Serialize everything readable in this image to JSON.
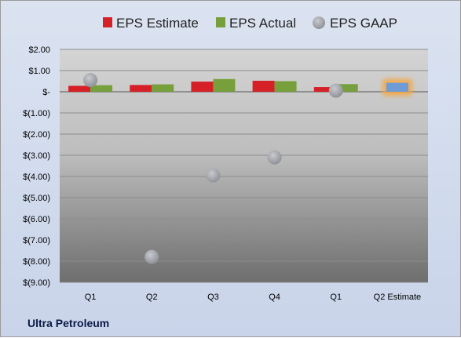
{
  "chart_data": {
    "type": "bar",
    "title": "",
    "xlabel": "",
    "ylabel": "",
    "categories": [
      "Q1",
      "Q2",
      "Q3",
      "Q4",
      "Q1",
      "Q2 Estimate"
    ],
    "ylim": [
      -9,
      2
    ],
    "yticks": [
      2,
      1,
      0,
      -1,
      -2,
      -3,
      -4,
      -5,
      -6,
      -7,
      -8,
      -9
    ],
    "ytick_labels": [
      "$2.00",
      "$1.00",
      "$-",
      "$(1.00)",
      "$(2.00)",
      "$(3.00)",
      "$(4.00)",
      "$(5.00)",
      "$(6.00)",
      "$(7.00)",
      "$(8.00)",
      "$(9.00)"
    ],
    "grid": true,
    "legend_position": "top",
    "series": [
      {
        "name": "EPS Estimate",
        "kind": "bar",
        "color": "#d62027",
        "values": [
          0.28,
          0.32,
          0.48,
          0.52,
          0.22,
          null
        ]
      },
      {
        "name": "EPS Actual",
        "kind": "bar",
        "color": "#77a03c",
        "values": [
          0.31,
          0.35,
          0.6,
          0.5,
          0.36,
          null
        ]
      },
      {
        "name": "EPS GAAP",
        "kind": "marker",
        "color": "#a9acb4",
        "values": [
          0.55,
          -7.8,
          -3.95,
          -3.1,
          0.05,
          null
        ]
      },
      {
        "name": "Q2 Estimate",
        "kind": "highlight",
        "color": "#6f9bd6",
        "glow": "#f6a53a",
        "values": [
          null,
          null,
          null,
          null,
          null,
          0.42
        ]
      }
    ]
  },
  "company": "Ultra Petroleum"
}
